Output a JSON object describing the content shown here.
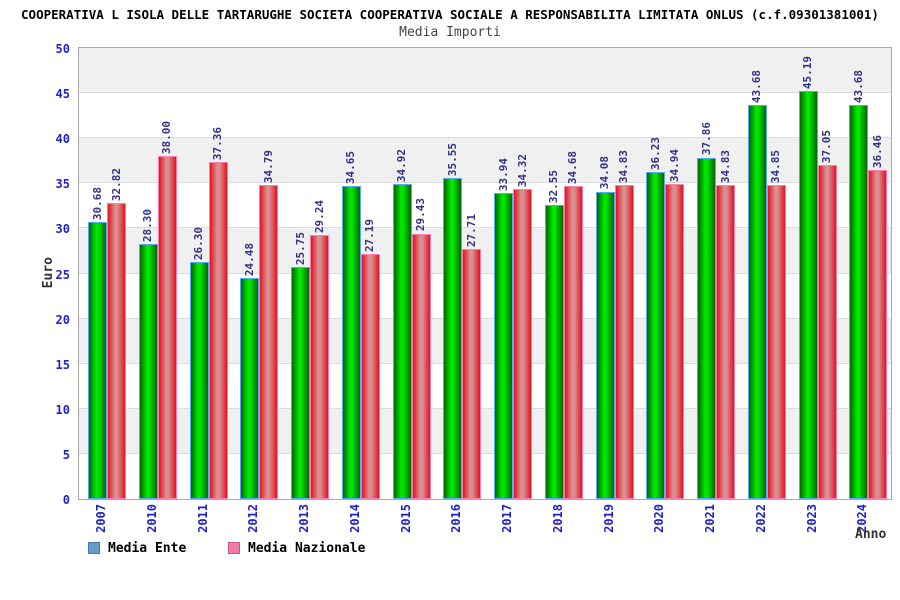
{
  "chart_data": {
    "type": "bar",
    "title": "COOPERATIVA L ISOLA DELLE TARTARUGHE SOCIETA COOPERATIVA SOCIALE A RESPONSABILITA LIMITATA ONLUS (c.f.09301381001)",
    "subtitle": "Media Importi",
    "xlabel": "Anno",
    "ylabel": "Euro",
    "ylim": [
      0,
      50
    ],
    "ytick_step": 5,
    "grid": "alternating-bands",
    "legend_position": "bottom-left",
    "categories": [
      "2007",
      "2010",
      "2011",
      "2012",
      "2013",
      "2014",
      "2015",
      "2016",
      "2017",
      "2018",
      "2019",
      "2020",
      "2021",
      "2022",
      "2023",
      "2024"
    ],
    "series": [
      {
        "name": "Media Ente",
        "values": [
          30.68,
          28.3,
          26.3,
          24.48,
          25.75,
          34.65,
          34.92,
          35.55,
          33.94,
          32.55,
          34.08,
          36.23,
          37.86,
          43.68,
          45.19,
          43.68
        ]
      },
      {
        "name": "Media Nazionale",
        "values": [
          32.82,
          38.0,
          37.36,
          34.79,
          29.24,
          27.19,
          29.43,
          27.71,
          34.32,
          34.68,
          34.83,
          34.94,
          34.83,
          34.85,
          37.05,
          36.46
        ]
      }
    ],
    "colors": {
      "ente_gradient": [
        "#076607",
        "#00E800",
        "#076607"
      ],
      "ente_border": "#58AAF0",
      "naz_gradient": [
        "#E61222",
        "#D89090",
        "#E61222"
      ],
      "naz_border": "#FF7FAE",
      "ente_legend_swatch": "#6699CC",
      "ente_legend_border": "#4477AA",
      "naz_legend_swatch": "#EE7AAA",
      "naz_legend_border": "#CC5588",
      "tick_label": "#2222CC",
      "value_label": "#333388",
      "band": "#F0F0F0",
      "gridline": "#DCDCDC"
    }
  }
}
